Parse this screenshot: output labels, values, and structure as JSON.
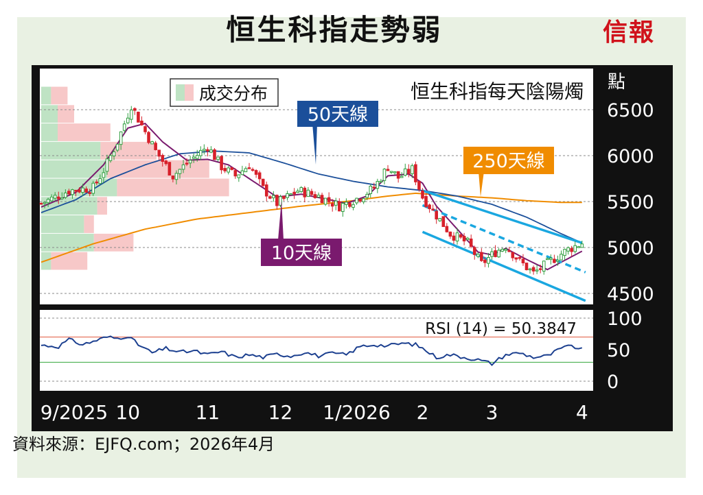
{
  "header": {
    "title": "恒生科指走勢弱",
    "logo": "信報"
  },
  "footer": {
    "source": "資料來源：EJFQ.com；2026年4月"
  },
  "colors": {
    "ma10": "#7a1a6e",
    "ma50": "#1b4f9a",
    "ma250": "#f08c00",
    "channel": "#1aa7e0",
    "rsi": "#1b3f8f",
    "rsi_upper": "#e0553a",
    "rsi_lower": "#33a63a",
    "candle_up": "#2e9e3e",
    "candle_down": "#d7202b",
    "vol_green": "#bfe3c4",
    "vol_pink": "#f7c8c8"
  },
  "chart_data": {
    "type": "candlestick",
    "title": "恒生科指每天陰陽燭",
    "y_unit": "點",
    "y_ticks": [
      6500,
      6000,
      5500,
      5000,
      4500
    ],
    "ylim": [
      4400,
      6700
    ],
    "x_labels": [
      "9/2025",
      "10",
      "11",
      "12",
      "1/2026",
      "2",
      "3",
      "4"
    ],
    "x_label_days": [
      0,
      25,
      48,
      69,
      91,
      110,
      130,
      156
    ],
    "volume_profile_legend": "成交分布",
    "volume_profile": [
      {
        "price": 6650,
        "green": 0.3,
        "pink": 0.5
      },
      {
        "price": 6450,
        "green": 0.5,
        "pink": 0.5
      },
      {
        "price": 6250,
        "green": 0.5,
        "pink": 1.6
      },
      {
        "price": 6050,
        "green": 1.8,
        "pink": 1.7
      },
      {
        "price": 5850,
        "green": 2.0,
        "pink": 3.1
      },
      {
        "price": 5650,
        "green": 2.3,
        "pink": 3.4
      },
      {
        "price": 5450,
        "green": 1.7,
        "pink": 0.3
      },
      {
        "price": 5250,
        "green": 1.3,
        "pink": 0.3
      },
      {
        "price": 5050,
        "green": 1.6,
        "pink": 1.2
      },
      {
        "price": 4850,
        "green": 0.3,
        "pink": 1.1
      }
    ],
    "ohlc_anchors": [
      [
        0,
        5480
      ],
      [
        8,
        5620
      ],
      [
        15,
        5650
      ],
      [
        18,
        5840
      ],
      [
        22,
        6150
      ],
      [
        26,
        6550
      ],
      [
        28,
        6400
      ],
      [
        33,
        6050
      ],
      [
        38,
        5780
      ],
      [
        43,
        5950
      ],
      [
        48,
        6100
      ],
      [
        52,
        5880
      ],
      [
        56,
        5780
      ],
      [
        60,
        5900
      ],
      [
        64,
        5640
      ],
      [
        68,
        5480
      ],
      [
        74,
        5620
      ],
      [
        80,
        5560
      ],
      [
        86,
        5450
      ],
      [
        92,
        5550
      ],
      [
        96,
        5650
      ],
      [
        100,
        5880
      ],
      [
        103,
        5760
      ],
      [
        107,
        5850
      ],
      [
        110,
        5550
      ],
      [
        114,
        5350
      ],
      [
        118,
        5150
      ],
      [
        123,
        5050
      ],
      [
        127,
        4820
      ],
      [
        131,
        4950
      ],
      [
        134,
        5020
      ],
      [
        138,
        4850
      ],
      [
        142,
        4720
      ],
      [
        145,
        4800
      ],
      [
        148,
        4880
      ],
      [
        152,
        4980
      ],
      [
        156,
        5050
      ]
    ],
    "series": [
      {
        "name": "10天線"
      },
      {
        "name": "50天線"
      },
      {
        "name": "250天線"
      }
    ],
    "ma10_anchors": [
      [
        0,
        5440
      ],
      [
        10,
        5600
      ],
      [
        18,
        5900
      ],
      [
        25,
        6300
      ],
      [
        30,
        6350
      ],
      [
        35,
        6150
      ],
      [
        42,
        5950
      ],
      [
        48,
        5960
      ],
      [
        54,
        5900
      ],
      [
        62,
        5700
      ],
      [
        68,
        5550
      ],
      [
        75,
        5580
      ],
      [
        82,
        5530
      ],
      [
        88,
        5480
      ],
      [
        94,
        5560
      ],
      [
        100,
        5780
      ],
      [
        106,
        5800
      ],
      [
        110,
        5700
      ],
      [
        114,
        5450
      ],
      [
        120,
        5200
      ],
      [
        126,
        4950
      ],
      [
        130,
        4920
      ],
      [
        134,
        4990
      ],
      [
        140,
        4870
      ],
      [
        146,
        4760
      ],
      [
        152,
        4880
      ],
      [
        156,
        4960
      ]
    ],
    "ma50_anchors": [
      [
        0,
        5380
      ],
      [
        10,
        5520
      ],
      [
        20,
        5750
      ],
      [
        30,
        5900
      ],
      [
        40,
        6020
      ],
      [
        50,
        6050
      ],
      [
        60,
        6030
      ],
      [
        70,
        5920
      ],
      [
        80,
        5800
      ],
      [
        90,
        5720
      ],
      [
        100,
        5660
      ],
      [
        110,
        5620
      ],
      [
        120,
        5560
      ],
      [
        130,
        5470
      ],
      [
        140,
        5330
      ],
      [
        150,
        5150
      ],
      [
        156,
        5050
      ]
    ],
    "ma250_anchors": [
      [
        0,
        4840
      ],
      [
        15,
        5040
      ],
      [
        30,
        5200
      ],
      [
        45,
        5310
      ],
      [
        60,
        5380
      ],
      [
        75,
        5450
      ],
      [
        90,
        5510
      ],
      [
        100,
        5560
      ],
      [
        108,
        5590
      ],
      [
        120,
        5560
      ],
      [
        130,
        5540
      ],
      [
        140,
        5510
      ],
      [
        150,
        5490
      ],
      [
        156,
        5490
      ]
    ],
    "channel_lines": [
      {
        "style": "solid",
        "from": [
          110,
          5620
        ],
        "to": [
          156,
          5050
        ]
      },
      {
        "style": "dashed",
        "from": [
          110,
          5460
        ],
        "to": [
          157,
          4730
        ]
      },
      {
        "style": "solid",
        "from": [
          110,
          5170
        ],
        "to": [
          157,
          4420
        ]
      }
    ],
    "callouts": [
      "50天線",
      "250天線",
      "10天線"
    ],
    "rsi": {
      "label": "RSI (14) = 50.3847",
      "value": 50.3847,
      "ylim": [
        0,
        100
      ],
      "ticks": [
        100,
        50,
        0
      ],
      "upper": 70,
      "lower": 30,
      "anchors": [
        [
          0,
          57
        ],
        [
          5,
          55
        ],
        [
          8,
          66
        ],
        [
          12,
          58
        ],
        [
          16,
          65
        ],
        [
          19,
          70
        ],
        [
          22,
          68
        ],
        [
          25,
          72
        ],
        [
          28,
          58
        ],
        [
          32,
          45
        ],
        [
          36,
          52
        ],
        [
          40,
          46
        ],
        [
          44,
          48
        ],
        [
          48,
          42
        ],
        [
          52,
          47
        ],
        [
          56,
          38
        ],
        [
          60,
          42
        ],
        [
          64,
          38
        ],
        [
          68,
          43
        ],
        [
          72,
          40
        ],
        [
          76,
          46
        ],
        [
          80,
          40
        ],
        [
          84,
          44
        ],
        [
          88,
          42
        ],
        [
          92,
          55
        ],
        [
          96,
          58
        ],
        [
          100,
          56
        ],
        [
          104,
          60
        ],
        [
          108,
          58
        ],
        [
          110,
          52
        ],
        [
          114,
          38
        ],
        [
          118,
          42
        ],
        [
          122,
          38
        ],
        [
          126,
          34
        ],
        [
          130,
          28
        ],
        [
          134,
          42
        ],
        [
          138,
          45
        ],
        [
          142,
          38
        ],
        [
          146,
          40
        ],
        [
          150,
          52
        ],
        [
          153,
          56
        ],
        [
          156,
          50
        ]
      ]
    }
  }
}
